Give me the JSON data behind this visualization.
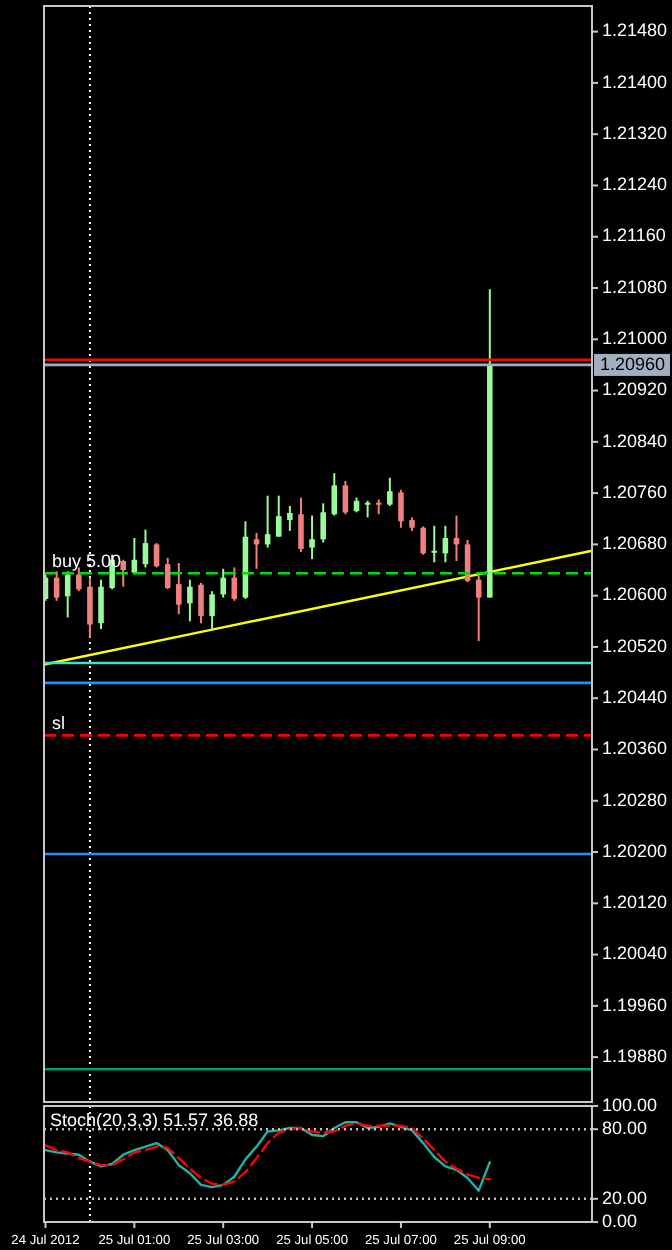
{
  "chart_data": [
    {
      "type": "candlestick",
      "x": [
        "2012-07-24T23:00",
        "2012-07-24T23:15",
        "2012-07-24T23:30",
        "2012-07-24T23:45",
        "2012-07-25T00:00",
        "2012-07-25T00:15",
        "2012-07-25T00:30",
        "2012-07-25T00:45",
        "2012-07-25T01:00",
        "2012-07-25T01:15",
        "2012-07-25T01:30",
        "2012-07-25T01:45",
        "2012-07-25T02:00",
        "2012-07-25T02:15",
        "2012-07-25T02:30",
        "2012-07-25T02:45",
        "2012-07-25T03:00",
        "2012-07-25T03:15",
        "2012-07-25T03:30",
        "2012-07-25T03:45",
        "2012-07-25T04:00",
        "2012-07-25T04:15",
        "2012-07-25T04:30",
        "2012-07-25T04:45",
        "2012-07-25T05:00",
        "2012-07-25T05:15",
        "2012-07-25T05:30",
        "2012-07-25T05:45",
        "2012-07-25T06:00",
        "2012-07-25T06:15",
        "2012-07-25T06:30",
        "2012-07-25T06:45",
        "2012-07-25T07:00",
        "2012-07-25T07:15",
        "2012-07-25T07:30",
        "2012-07-25T07:45",
        "2012-07-25T08:00",
        "2012-07-25T08:15",
        "2012-07-25T08:30",
        "2012-07-25T08:45",
        "2012-07-25T09:00"
      ],
      "ohlc": [
        [
          1.20595,
          1.20633,
          1.20592,
          1.20628
        ],
        [
          1.20628,
          1.20638,
          1.20592,
          1.20597
        ],
        [
          1.20599,
          1.20638,
          1.20566,
          1.20633
        ],
        [
          1.20633,
          1.20644,
          1.20607,
          1.2061
        ],
        [
          1.20614,
          1.20628,
          1.20534,
          1.20555
        ],
        [
          1.20557,
          1.20625,
          1.20548,
          1.20614
        ],
        [
          1.20612,
          1.20664,
          1.2061,
          1.20656
        ],
        [
          1.20654,
          1.20656,
          1.20614,
          1.2064
        ],
        [
          1.20636,
          1.2069,
          1.20633,
          1.20656
        ],
        [
          1.20649,
          1.20703,
          1.20644,
          1.20682
        ],
        [
          1.2068,
          1.20682,
          1.20644,
          1.20646
        ],
        [
          1.20649,
          1.20659,
          1.2061,
          1.20612
        ],
        [
          1.20618,
          1.20651,
          1.20571,
          1.20586
        ],
        [
          1.20588,
          1.20625,
          1.2056,
          1.20614
        ],
        [
          1.20617,
          1.2062,
          1.20557,
          1.20568
        ],
        [
          1.20568,
          1.20607,
          1.20547,
          1.20602
        ],
        [
          1.20602,
          1.20642,
          1.20597,
          1.20628
        ],
        [
          1.20628,
          1.20644,
          1.20592,
          1.20595
        ],
        [
          1.20597,
          1.20716,
          1.20595,
          1.20692
        ],
        [
          1.20688,
          1.20698,
          1.20642,
          1.2068
        ],
        [
          1.2068,
          1.20756,
          1.20675,
          1.20696
        ],
        [
          1.20692,
          1.20756,
          1.20692,
          1.20724
        ],
        [
          1.20718,
          1.2074,
          1.20701,
          1.20729
        ],
        [
          1.20727,
          1.20753,
          1.20668,
          1.20673
        ],
        [
          1.20675,
          1.20725,
          1.20657,
          1.20688
        ],
        [
          1.20688,
          1.20744,
          1.20683,
          1.2073
        ],
        [
          1.20727,
          1.20791,
          1.20725,
          1.20772
        ],
        [
          1.20772,
          1.20779,
          1.20727,
          1.2073
        ],
        [
          1.20732,
          1.20753,
          1.2073,
          1.20748
        ],
        [
          1.20744,
          1.20748,
          1.20722,
          1.20745
        ],
        [
          1.20745,
          1.2075,
          1.20727,
          1.20744
        ],
        [
          1.20742,
          1.20784,
          1.2074,
          1.20763
        ],
        [
          1.20761,
          1.20765,
          1.20706,
          1.20716
        ],
        [
          1.20718,
          1.20722,
          1.20701,
          1.20706
        ],
        [
          1.20706,
          1.20708,
          1.20664,
          1.20666
        ],
        [
          1.20669,
          1.20709,
          1.20652,
          1.2067
        ],
        [
          1.20666,
          1.20709,
          1.20652,
          1.2069
        ],
        [
          1.2069,
          1.20725,
          1.20654,
          1.2068
        ],
        [
          1.2068,
          1.20687,
          1.20621,
          1.20623
        ],
        [
          1.20625,
          1.20631,
          1.20529,
          1.20597
        ],
        [
          1.20597,
          1.21078,
          1.20597,
          1.2096
        ]
      ],
      "colors": [
        "#98fb98",
        "#f08080",
        "#98fb98",
        "#f08080",
        "#f08080",
        "#98fb98",
        "#98fb98",
        "#f08080",
        "#98fb98",
        "#98fb98",
        "#f08080",
        "#f08080",
        "#f08080",
        "#98fb98",
        "#f08080",
        "#98fb98",
        "#98fb98",
        "#f08080",
        "#98fb98",
        "#f08080",
        "#98fb98",
        "#98fb98",
        "#98fb98",
        "#f08080",
        "#98fb98",
        "#98fb98",
        "#98fb98",
        "#f08080",
        "#98fb98",
        "#98fb98",
        "#f08080",
        "#98fb98",
        "#f08080",
        "#f08080",
        "#f08080",
        "#98fb98",
        "#98fb98",
        "#f08080",
        "#f08080",
        "#f08080",
        "#98fb98"
      ],
      "series": [
        {
          "type": "line",
          "color": "#ffff00",
          "x": [
            "2012-07-24T23:00",
            "2012-07-25T02:45",
            "2012-07-25T11:18"
          ],
          "values": [
            1.20493,
            1.20547,
            1.2067
          ]
        }
      ],
      "xlim": [
        "2012-07-24T22:58",
        "2012-07-25T11:18"
      ],
      "ylim": [
        1.1981,
        1.2152
      ],
      "yticks": [
        {
          "value": 1.2148,
          "label": "1.21480"
        },
        {
          "value": 1.214,
          "label": "1.21400"
        },
        {
          "value": 1.2132,
          "label": "1.21320"
        },
        {
          "value": 1.2124,
          "label": "1.21240"
        },
        {
          "value": 1.2116,
          "label": "1.21160"
        },
        {
          "value": 1.2108,
          "label": "1.21080"
        },
        {
          "value": 1.21,
          "label": "1.21000"
        },
        {
          "value": 1.2092,
          "label": "1.20920"
        },
        {
          "value": 1.2084,
          "label": "1.20840"
        },
        {
          "value": 1.2076,
          "label": "1.20760"
        },
        {
          "value": 1.2068,
          "label": "1.20680"
        },
        {
          "value": 1.206,
          "label": "1.20600"
        },
        {
          "value": 1.2052,
          "label": "1.20520"
        },
        {
          "value": 1.2044,
          "label": "1.20440"
        },
        {
          "value": 1.2036,
          "label": "1.20360"
        },
        {
          "value": 1.2028,
          "label": "1.20280"
        },
        {
          "value": 1.202,
          "label": "1.20200"
        },
        {
          "value": 1.2012,
          "label": "1.20120"
        },
        {
          "value": 1.2004,
          "label": "1.20040"
        },
        {
          "value": 1.1996,
          "label": "1.19960"
        },
        {
          "value": 1.1988,
          "label": "1.19880"
        }
      ],
      "ref_lines": [
        {
          "axis": "x",
          "value": "2012-07-25T00:00",
          "color": "#ffffff",
          "line_style": "dotted"
        },
        {
          "axis": "y",
          "value": 1.20968,
          "color": "#ff0000",
          "line_style": "solid"
        },
        {
          "axis": "y",
          "value": 1.2096,
          "label": "1.20960",
          "color": "#a0b0c0",
          "line_style": "solid"
        },
        {
          "axis": "y",
          "value": 1.20635,
          "label": "buy 5.00",
          "color": "#00e000",
          "line_style": "dashed"
        },
        {
          "axis": "y",
          "value": 1.20495,
          "color": "#40e0c0",
          "line_style": "solid"
        },
        {
          "axis": "y",
          "value": 1.20464,
          "color": "#1e90ff",
          "line_style": "solid"
        },
        {
          "axis": "y",
          "value": 1.20382,
          "label": "sl",
          "color": "#ff0000",
          "line_style": "dashed"
        },
        {
          "axis": "y",
          "value": 1.20197,
          "color": "#1e90ff",
          "line_style": "solid"
        },
        {
          "axis": "y",
          "value": 1.19861,
          "color": "#00a060",
          "line_style": "solid"
        }
      ],
      "grid": false,
      "tick_labels": "y"
    },
    {
      "type": "line",
      "title": "Stoch(20,3,3) 51.57 36.88",
      "x": [
        "2012-07-24T23:00",
        "2012-07-24T23:15",
        "2012-07-24T23:30",
        "2012-07-24T23:45",
        "2012-07-25T00:00",
        "2012-07-25T00:15",
        "2012-07-25T00:30",
        "2012-07-25T00:45",
        "2012-07-25T01:00",
        "2012-07-25T01:15",
        "2012-07-25T01:30",
        "2012-07-25T01:45",
        "2012-07-25T02:00",
        "2012-07-25T02:15",
        "2012-07-25T02:30",
        "2012-07-25T02:45",
        "2012-07-25T03:00",
        "2012-07-25T03:15",
        "2012-07-25T03:30",
        "2012-07-25T03:45",
        "2012-07-25T04:00",
        "2012-07-25T04:15",
        "2012-07-25T04:30",
        "2012-07-25T04:45",
        "2012-07-25T05:00",
        "2012-07-25T05:15",
        "2012-07-25T05:30",
        "2012-07-25T05:45",
        "2012-07-25T06:00",
        "2012-07-25T06:15",
        "2012-07-25T06:30",
        "2012-07-25T06:45",
        "2012-07-25T07:00",
        "2012-07-25T07:15",
        "2012-07-25T07:30",
        "2012-07-25T07:45",
        "2012-07-25T08:00",
        "2012-07-25T08:15",
        "2012-07-25T08:30",
        "2012-07-25T08:45",
        "2012-07-25T09:00"
      ],
      "series": [
        {
          "color": "#20b2aa",
          "line_style": "solid",
          "values": [
            62,
            60,
            59,
            58,
            52,
            48,
            50,
            58,
            62,
            65,
            68,
            62,
            49,
            42,
            32,
            30,
            32,
            39,
            54,
            65,
            78,
            79,
            81,
            81,
            75,
            74,
            81,
            86,
            86,
            81,
            82,
            85,
            82,
            79,
            68,
            56,
            48,
            45,
            38,
            27,
            51.57
          ]
        },
        {
          "color": "#ff0000",
          "line_style": "dashed",
          "values": [
            66,
            62,
            60,
            55,
            52,
            49,
            49,
            54,
            60,
            62,
            65,
            64,
            55,
            46,
            38,
            33,
            32,
            35,
            43,
            55,
            68,
            77,
            80,
            81,
            78,
            77,
            78,
            83,
            85,
            83,
            83,
            83,
            83,
            81,
            72,
            62,
            52,
            46,
            41,
            38,
            36.88
          ]
        }
      ],
      "xlim": [
        "2012-07-24T22:58",
        "2012-07-25T11:18"
      ],
      "xticks": [
        {
          "value": "2012-07-24T23:00",
          "label": "24 Jul 2012"
        },
        {
          "value": "2012-07-25T01:00",
          "label": "25 Jul 01:00"
        },
        {
          "value": "2012-07-25T03:00",
          "label": "25 Jul 03:00"
        },
        {
          "value": "2012-07-25T05:00",
          "label": "25 Jul 05:00"
        },
        {
          "value": "2012-07-25T07:00",
          "label": "25 Jul 07:00"
        },
        {
          "value": "2012-07-25T09:00",
          "label": "25 Jul 09:00"
        }
      ],
      "ylim": [
        0,
        100
      ],
      "yticks": [
        {
          "value": 100,
          "label": "100.00"
        },
        {
          "value": 80,
          "label": "80.00"
        },
        {
          "value": 20,
          "label": "20.00"
        },
        {
          "value": 0,
          "label": "0.00"
        }
      ],
      "ref_lines": [
        {
          "axis": "x",
          "value": "2012-07-25T00:00",
          "color": "#ffffff",
          "line_style": "dotted"
        },
        {
          "axis": "y",
          "value": 80,
          "color": "#c0c0c0",
          "line_style": "dotted"
        },
        {
          "axis": "y",
          "value": 20,
          "color": "#c0c0c0",
          "line_style": "dotted"
        }
      ],
      "grid": false
    }
  ]
}
